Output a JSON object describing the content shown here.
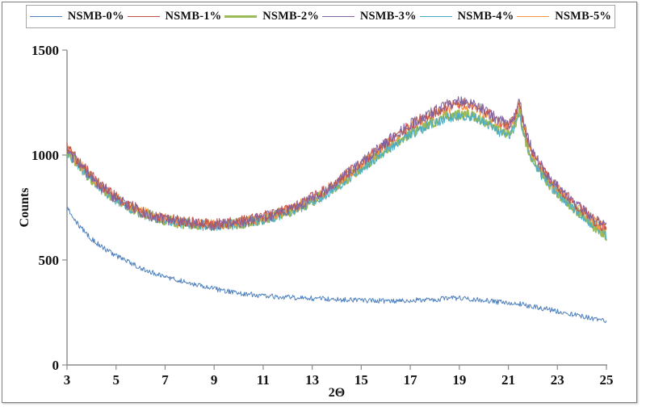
{
  "chart_data": {
    "type": "line",
    "title": "",
    "xlabel": "2Θ",
    "ylabel": "Counts",
    "xlim": [
      3,
      25
    ],
    "ylim": [
      0,
      1500
    ],
    "x_ticks": [
      3,
      5,
      7,
      9,
      11,
      13,
      15,
      17,
      19,
      21,
      23,
      25
    ],
    "y_ticks": [
      0,
      500,
      1000,
      1500
    ],
    "grid": false,
    "legend_position": "top",
    "axis_color": "#8c8c8c",
    "text_color": "#111111",
    "noise_model": "uniform jitter of ±'noise' counts superimposed on the anchor-interpolated baseline (noisy XRD traces)",
    "series": [
      {
        "name": "NSMB-0%",
        "color": "#4F81BD",
        "width": 1,
        "noise": 12,
        "anchors": [
          [
            3,
            750
          ],
          [
            3.5,
            662
          ],
          [
            4,
            600
          ],
          [
            4.5,
            556
          ],
          [
            5,
            520
          ],
          [
            5.5,
            490
          ],
          [
            6,
            463
          ],
          [
            6.5,
            440
          ],
          [
            7,
            421
          ],
          [
            7.5,
            405
          ],
          [
            8,
            391
          ],
          [
            8.5,
            376
          ],
          [
            9,
            363
          ],
          [
            9.5,
            352
          ],
          [
            10,
            343
          ],
          [
            10.5,
            336
          ],
          [
            11,
            330
          ],
          [
            12,
            322
          ],
          [
            13,
            317
          ],
          [
            14,
            312
          ],
          [
            15,
            308
          ],
          [
            16,
            305
          ],
          [
            17,
            307
          ],
          [
            18,
            312
          ],
          [
            18.5,
            317
          ],
          [
            19,
            319
          ],
          [
            19.5,
            315
          ],
          [
            20,
            308
          ],
          [
            20.5,
            301
          ],
          [
            21,
            296
          ],
          [
            21.5,
            290
          ],
          [
            22,
            279
          ],
          [
            22.5,
            268
          ],
          [
            23,
            256
          ],
          [
            23.5,
            245
          ],
          [
            24,
            232
          ],
          [
            24.5,
            219
          ],
          [
            25,
            206
          ]
        ]
      },
      {
        "name": "NSMB-1%",
        "color": "#C0504D",
        "width": 1,
        "noise": 27,
        "anchors": [
          [
            3,
            1035
          ],
          [
            3.5,
            965
          ],
          [
            4,
            900
          ],
          [
            4.5,
            845
          ],
          [
            5,
            800
          ],
          [
            5.5,
            763
          ],
          [
            6,
            736
          ],
          [
            6.5,
            715
          ],
          [
            7,
            700
          ],
          [
            7.5,
            688
          ],
          [
            8,
            680
          ],
          [
            8.5,
            674
          ],
          [
            9,
            672
          ],
          [
            9.5,
            675
          ],
          [
            10,
            683
          ],
          [
            10.5,
            693
          ],
          [
            11,
            706
          ],
          [
            11.5,
            721
          ],
          [
            12,
            742
          ],
          [
            12.5,
            766
          ],
          [
            13,
            797
          ],
          [
            13.5,
            832
          ],
          [
            14,
            873
          ],
          [
            14.5,
            918
          ],
          [
            15,
            965
          ],
          [
            15.5,
            1011
          ],
          [
            16,
            1057
          ],
          [
            16.5,
            1100
          ],
          [
            17,
            1140
          ],
          [
            17.5,
            1175
          ],
          [
            18,
            1205
          ],
          [
            18.5,
            1232
          ],
          [
            19,
            1245
          ],
          [
            19.5,
            1240
          ],
          [
            20,
            1212
          ],
          [
            20.5,
            1170
          ],
          [
            21,
            1140
          ],
          [
            21.2,
            1165
          ],
          [
            21.45,
            1248
          ],
          [
            21.7,
            1110
          ],
          [
            22,
            1008
          ],
          [
            22.5,
            912
          ],
          [
            23,
            850
          ],
          [
            23.5,
            790
          ],
          [
            24,
            740
          ],
          [
            24.5,
            690
          ],
          [
            25,
            650
          ]
        ]
      },
      {
        "name": "NSMB-2%",
        "color": "#9BBB59",
        "width": 2.2,
        "noise": 25,
        "anchors": [
          [
            3,
            1020
          ],
          [
            3.5,
            950
          ],
          [
            4,
            885
          ],
          [
            4.5,
            832
          ],
          [
            5,
            788
          ],
          [
            5.5,
            753
          ],
          [
            6,
            726
          ],
          [
            6.5,
            706
          ],
          [
            7,
            691
          ],
          [
            7.5,
            680
          ],
          [
            8,
            672
          ],
          [
            8.5,
            666
          ],
          [
            9,
            664
          ],
          [
            9.5,
            667
          ],
          [
            10,
            674
          ],
          [
            10.5,
            684
          ],
          [
            11,
            695
          ],
          [
            11.5,
            710
          ],
          [
            12,
            728
          ],
          [
            12.5,
            751
          ],
          [
            13,
            780
          ],
          [
            13.5,
            813
          ],
          [
            14,
            852
          ],
          [
            14.5,
            895
          ],
          [
            15,
            940
          ],
          [
            15.5,
            984
          ],
          [
            16,
            1028
          ],
          [
            16.5,
            1068
          ],
          [
            17,
            1105
          ],
          [
            17.5,
            1135
          ],
          [
            18,
            1162
          ],
          [
            18.5,
            1185
          ],
          [
            19,
            1195
          ],
          [
            19.5,
            1190
          ],
          [
            20,
            1165
          ],
          [
            20.5,
            1125
          ],
          [
            21,
            1098
          ],
          [
            21.2,
            1125
          ],
          [
            21.45,
            1205
          ],
          [
            21.7,
            1070
          ],
          [
            22,
            975
          ],
          [
            22.5,
            882
          ],
          [
            23,
            822
          ],
          [
            23.5,
            763
          ],
          [
            24,
            712
          ],
          [
            24.5,
            662
          ],
          [
            25,
            618
          ]
        ]
      },
      {
        "name": "NSMB-3%",
        "color": "#8064A2",
        "width": 1,
        "noise": 27,
        "anchors": [
          [
            3,
            1025
          ],
          [
            3.5,
            956
          ],
          [
            4,
            892
          ],
          [
            4.5,
            838
          ],
          [
            5,
            793
          ],
          [
            5.5,
            757
          ],
          [
            6,
            730
          ],
          [
            6.5,
            709
          ],
          [
            7,
            694
          ],
          [
            7.5,
            683
          ],
          [
            8,
            676
          ],
          [
            8.5,
            670
          ],
          [
            9,
            668
          ],
          [
            9.5,
            671
          ],
          [
            10,
            680
          ],
          [
            10.5,
            690
          ],
          [
            11,
            702
          ],
          [
            11.5,
            718
          ],
          [
            12,
            738
          ],
          [
            12.5,
            763
          ],
          [
            13,
            795
          ],
          [
            13.5,
            830
          ],
          [
            14,
            872
          ],
          [
            14.5,
            917
          ],
          [
            15,
            965
          ],
          [
            15.5,
            1012
          ],
          [
            16,
            1060
          ],
          [
            16.5,
            1104
          ],
          [
            17,
            1145
          ],
          [
            17.5,
            1182
          ],
          [
            18,
            1212
          ],
          [
            18.5,
            1240
          ],
          [
            19,
            1255
          ],
          [
            19.5,
            1248
          ],
          [
            20,
            1218
          ],
          [
            20.5,
            1175
          ],
          [
            21,
            1145
          ],
          [
            21.2,
            1172
          ],
          [
            21.45,
            1258
          ],
          [
            21.7,
            1118
          ],
          [
            22,
            1015
          ],
          [
            22.5,
            918
          ],
          [
            23,
            855
          ],
          [
            23.5,
            795
          ],
          [
            24,
            745
          ],
          [
            24.5,
            695
          ],
          [
            25,
            655
          ]
        ]
      },
      {
        "name": "NSMB-4%",
        "color": "#4BACC6",
        "width": 1,
        "noise": 25,
        "anchors": [
          [
            3,
            1015
          ],
          [
            3.5,
            945
          ],
          [
            4,
            880
          ],
          [
            4.5,
            828
          ],
          [
            5,
            785
          ],
          [
            5.5,
            750
          ],
          [
            6,
            723
          ],
          [
            6.5,
            703
          ],
          [
            7,
            689
          ],
          [
            7.5,
            678
          ],
          [
            8,
            670
          ],
          [
            8.5,
            664
          ],
          [
            9,
            662
          ],
          [
            9.5,
            665
          ],
          [
            10,
            672
          ],
          [
            10.5,
            681
          ],
          [
            11,
            692
          ],
          [
            11.5,
            707
          ],
          [
            12,
            725
          ],
          [
            12.5,
            748
          ],
          [
            13,
            776
          ],
          [
            13.5,
            809
          ],
          [
            14,
            848
          ],
          [
            14.5,
            890
          ],
          [
            15,
            935
          ],
          [
            15.5,
            978
          ],
          [
            16,
            1022
          ],
          [
            16.5,
            1062
          ],
          [
            17,
            1098
          ],
          [
            17.5,
            1128
          ],
          [
            18,
            1155
          ],
          [
            18.5,
            1178
          ],
          [
            19,
            1188
          ],
          [
            19.5,
            1182
          ],
          [
            20,
            1158
          ],
          [
            20.5,
            1118
          ],
          [
            21,
            1092
          ],
          [
            21.2,
            1118
          ],
          [
            21.45,
            1198
          ],
          [
            21.7,
            1065
          ],
          [
            22,
            970
          ],
          [
            22.5,
            878
          ],
          [
            23,
            818
          ],
          [
            23.5,
            760
          ],
          [
            24,
            708
          ],
          [
            24.5,
            658
          ],
          [
            25,
            612
          ]
        ]
      },
      {
        "name": "NSMB-5%",
        "color": "#F79646",
        "width": 1,
        "noise": 26,
        "anchors": [
          [
            3,
            1030
          ],
          [
            3.5,
            960
          ],
          [
            4,
            896
          ],
          [
            4.5,
            841
          ],
          [
            5,
            796
          ],
          [
            5.5,
            760
          ],
          [
            6,
            733
          ],
          [
            6.5,
            712
          ],
          [
            7,
            697
          ],
          [
            7.5,
            686
          ],
          [
            8,
            678
          ],
          [
            8.5,
            672
          ],
          [
            9,
            670
          ],
          [
            9.5,
            673
          ],
          [
            10,
            681
          ],
          [
            10.5,
            691
          ],
          [
            11,
            704
          ],
          [
            11.5,
            719
          ],
          [
            12,
            740
          ],
          [
            12.5,
            764
          ],
          [
            13,
            794
          ],
          [
            13.5,
            829
          ],
          [
            14,
            870
          ],
          [
            14.5,
            914
          ],
          [
            15,
            960
          ],
          [
            15.5,
            1006
          ],
          [
            16,
            1050
          ],
          [
            16.5,
            1092
          ],
          [
            17,
            1132
          ],
          [
            17.5,
            1168
          ],
          [
            18,
            1198
          ],
          [
            18.5,
            1222
          ],
          [
            19,
            1235
          ],
          [
            19.5,
            1230
          ],
          [
            20,
            1202
          ],
          [
            20.5,
            1160
          ],
          [
            21,
            1132
          ],
          [
            21.2,
            1158
          ],
          [
            21.45,
            1242
          ],
          [
            21.7,
            1102
          ],
          [
            22,
            1002
          ],
          [
            22.5,
            908
          ],
          [
            23,
            846
          ],
          [
            23.5,
            786
          ],
          [
            24,
            736
          ],
          [
            24.5,
            686
          ],
          [
            25,
            646
          ]
        ]
      }
    ]
  }
}
